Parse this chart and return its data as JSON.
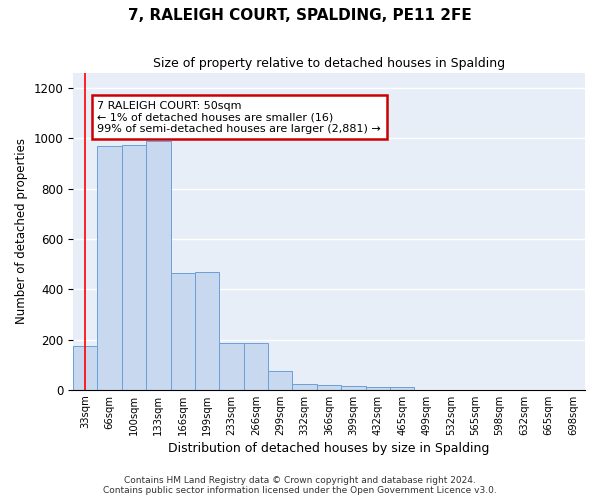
{
  "title": "7, RALEIGH COURT, SPALDING, PE11 2FE",
  "subtitle": "Size of property relative to detached houses in Spalding",
  "xlabel": "Distribution of detached houses by size in Spalding",
  "ylabel": "Number of detached properties",
  "bar_color": "#c8d8ef",
  "bar_edge_color": "#6a9fd8",
  "bg_color": "#e8eef8",
  "categories": [
    "33sqm",
    "66sqm",
    "100sqm",
    "133sqm",
    "166sqm",
    "199sqm",
    "233sqm",
    "266sqm",
    "299sqm",
    "332sqm",
    "366sqm",
    "399sqm",
    "432sqm",
    "465sqm",
    "499sqm",
    "532sqm",
    "565sqm",
    "598sqm",
    "632sqm",
    "665sqm",
    "698sqm"
  ],
  "values": [
    175,
    968,
    975,
    990,
    465,
    468,
    185,
    185,
    73,
    25,
    20,
    15,
    10,
    13,
    0,
    0,
    0,
    0,
    0,
    0,
    0
  ],
  "ylim": [
    0,
    1260
  ],
  "yticks": [
    0,
    200,
    400,
    600,
    800,
    1000,
    1200
  ],
  "annotation_text": "7 RALEIGH COURT: 50sqm\n← 1% of detached houses are smaller (16)\n99% of semi-detached houses are larger (2,881) →",
  "annotation_box_color": "#ffffff",
  "annotation_box_edge": "#cc0000",
  "footnote": "Contains HM Land Registry data © Crown copyright and database right 2024.\nContains public sector information licensed under the Open Government Licence v3.0."
}
